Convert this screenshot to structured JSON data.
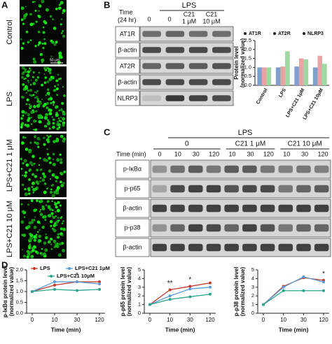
{
  "panel_labels": [
    "A",
    "B",
    "C",
    "D"
  ],
  "panel_a": {
    "images": [
      "Control",
      "LPS",
      "LPS+C21 1 μM",
      "LPS+C21 10 μM"
    ],
    "scale_bar": "50 μm"
  },
  "panel_b": {
    "time_label": [
      "Time",
      "(24 hr)"
    ],
    "group": "LPS",
    "columns": [
      [
        "0"
      ],
      [
        "0"
      ],
      [
        "C21",
        "1 μM"
      ],
      [
        "C21",
        "10 μM"
      ]
    ],
    "rows": [
      "AT1R",
      "β-actin",
      "AT2R",
      "β-actin",
      "NLRP3"
    ]
  },
  "panel_c": {
    "group": "LPS",
    "time_label": "Time (min)",
    "subgroups": [
      "0",
      "C21 1 μM",
      "C21 10 μM"
    ],
    "lanes": [
      "0",
      "10",
      "30",
      "120",
      "10",
      "30",
      "120",
      "10",
      "30",
      "120"
    ],
    "rows": [
      "p-IκBα",
      "p-p65",
      "β-actin",
      "p-p38",
      "β-actin"
    ]
  },
  "chart_data": [
    {
      "type": "bar",
      "ylabel": [
        "Protein level",
        "(normalized value)"
      ],
      "categories": [
        "Control",
        "LPS",
        "LPS+C21 1μM",
        "LPS+C21 10μM"
      ],
      "series": [
        {
          "name": "AT1R",
          "color": "#7f9fcf",
          "values": [
            1,
            1.0,
            1.05,
            1.0
          ]
        },
        {
          "name": "AT2R",
          "color": "#e9a3a3",
          "values": [
            1,
            1.05,
            1.5,
            1.65
          ]
        },
        {
          "name": "NLRP3",
          "color": "#9fd8a0",
          "values": [
            1,
            1.9,
            1.45,
            1.2
          ]
        }
      ],
      "ylim": [
        0,
        2.5
      ],
      "yticks": [
        {
          "value": 0,
          "label": "0.0"
        },
        0.5,
        {
          "value": 1,
          "label": "1.0"
        },
        1.5,
        {
          "value": 2,
          "label": "2.0"
        },
        2.5
      ]
    },
    {
      "type": "line",
      "xlabel": "Time (min)",
      "ylabel": [
        "p-IκBα protein level",
        "(normalized value)"
      ],
      "categories": [
        "0",
        "10",
        "30",
        "120"
      ],
      "series": [
        {
          "name": "LPS",
          "color": "#c0392b",
          "values": [
            1,
            1.3,
            1.45,
            1.45
          ]
        },
        {
          "name": "LPS+C21 1μM",
          "color": "#5b9bd5",
          "values": [
            1,
            1.45,
            1.45,
            1.35
          ]
        },
        {
          "name": "LPS+C21 10μM",
          "color": "#2ca58d",
          "values": [
            1,
            1.1,
            1.05,
            1.1
          ]
        }
      ],
      "ylim": [
        0,
        2
      ],
      "yticks": [
        {
          "value": 0,
          "label": "0.0"
        },
        0.5,
        {
          "value": 1,
          "label": "1.0"
        },
        1.5,
        {
          "value": 2,
          "label": "2.0"
        }
      ],
      "annotations": [
        {
          "text": "*",
          "category": "30"
        }
      ]
    },
    {
      "type": "line",
      "xlabel": "Time (min)",
      "ylabel": [
        "p-p65 protein level",
        "(normalized value)"
      ],
      "categories": [
        "0",
        "10",
        "30",
        "120"
      ],
      "series": [
        {
          "color": "#c0392b",
          "values": [
            1,
            2.7,
            3.1,
            3.5
          ]
        },
        {
          "color": "#5b9bd5",
          "values": [
            1,
            2.0,
            2.8,
            3.0
          ]
        },
        {
          "color": "#2ca58d",
          "values": [
            1,
            1.6,
            1.9,
            2.2
          ]
        }
      ],
      "ylim": [
        0,
        5
      ],
      "yticks": [
        0,
        1,
        2,
        3,
        4,
        5
      ],
      "annotations": [
        {
          "text": "**",
          "category": "10"
        },
        {
          "text": "*",
          "category": "30"
        }
      ]
    },
    {
      "type": "line",
      "xlabel": "Time (min)",
      "ylabel": [
        "p-p38 protein level",
        "(normalized value)"
      ],
      "categories": [
        "0",
        "10",
        "30",
        "120"
      ],
      "series": [
        {
          "color": "#c0392b",
          "values": [
            1,
            3.1,
            4.1,
            3.8
          ]
        },
        {
          "color": "#5b9bd5",
          "values": [
            1,
            3.0,
            4.2,
            3.6
          ]
        },
        {
          "color": "#2ca58d",
          "values": [
            1,
            2.6,
            2.6,
            2.6
          ]
        }
      ],
      "ylim": [
        0,
        5
      ],
      "yticks": [
        0,
        1,
        2,
        3,
        4,
        5
      ],
      "annotations": [
        {
          "text": "*",
          "category": "120"
        }
      ]
    }
  ]
}
